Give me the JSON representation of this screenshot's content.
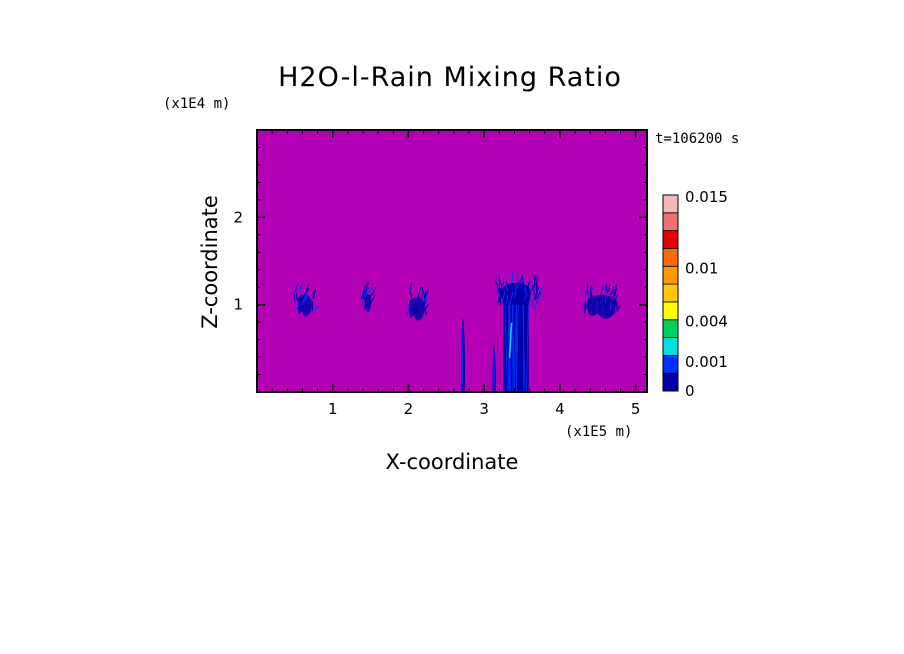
{
  "chart_data": {
    "type": "heatmap",
    "title": "H2O-l-Rain Mixing Ratio",
    "xlabel": "X-coordinate",
    "ylabel": "Z-coordinate",
    "x_scale_label": "(x1E5 m)",
    "y_scale_label": "(x1E4 m)",
    "time_label": "t=106200 s",
    "xlim": [
      0,
      5.15
    ],
    "ylim": [
      0,
      3.0
    ],
    "x_ticks": [
      "1",
      "2",
      "3",
      "4",
      "5"
    ],
    "y_ticks": [
      "1",
      "2"
    ],
    "x_tick_values": [
      1,
      2,
      3,
      4,
      5
    ],
    "y_tick_values": [
      1,
      2
    ],
    "background_color": "#b400b4",
    "colorbar": {
      "levels": [
        0,
        0.001,
        0.002,
        0.003,
        0.004,
        0.006,
        0.008,
        0.01,
        0.012,
        0.013,
        0.014,
        0.015
      ],
      "colors": [
        "#0000a8",
        "#0030ff",
        "#00e0e0",
        "#00d060",
        "#ffff00",
        "#ffc800",
        "#ff9a00",
        "#ff6a00",
        "#e60000",
        "#f07070",
        "#f8b8b8"
      ],
      "tick_labels": [
        "0",
        "0.001",
        "0.004",
        "0.01",
        "0.015"
      ],
      "tick_values": [
        0,
        0.001,
        0.004,
        0.01,
        0.015
      ]
    },
    "rain_regions": [
      {
        "x_center": 0.62,
        "z_bottom": 0.85,
        "z_top": 1.15,
        "half_width": 0.13,
        "kind": "cloud"
      },
      {
        "x_center": 1.45,
        "z_bottom": 0.9,
        "z_top": 1.15,
        "half_width": 0.08,
        "kind": "cloud"
      },
      {
        "x_center": 2.1,
        "z_bottom": 0.8,
        "z_top": 1.12,
        "half_width": 0.14,
        "kind": "cloud"
      },
      {
        "x_center": 4.55,
        "z_bottom": 0.82,
        "z_top": 1.15,
        "half_width": 0.24,
        "kind": "cloud"
      },
      {
        "x_center": 2.72,
        "z_bottom": 0.0,
        "z_top": 0.85,
        "half_width": 0.03,
        "kind": "shaft"
      },
      {
        "x_center": 3.13,
        "z_bottom": 0.0,
        "z_top": 0.55,
        "half_width": 0.025,
        "kind": "shaft"
      },
      {
        "x_center": 3.42,
        "z_bottom": 0.0,
        "z_top": 1.25,
        "half_width": 0.24,
        "kind": "column"
      }
    ]
  }
}
